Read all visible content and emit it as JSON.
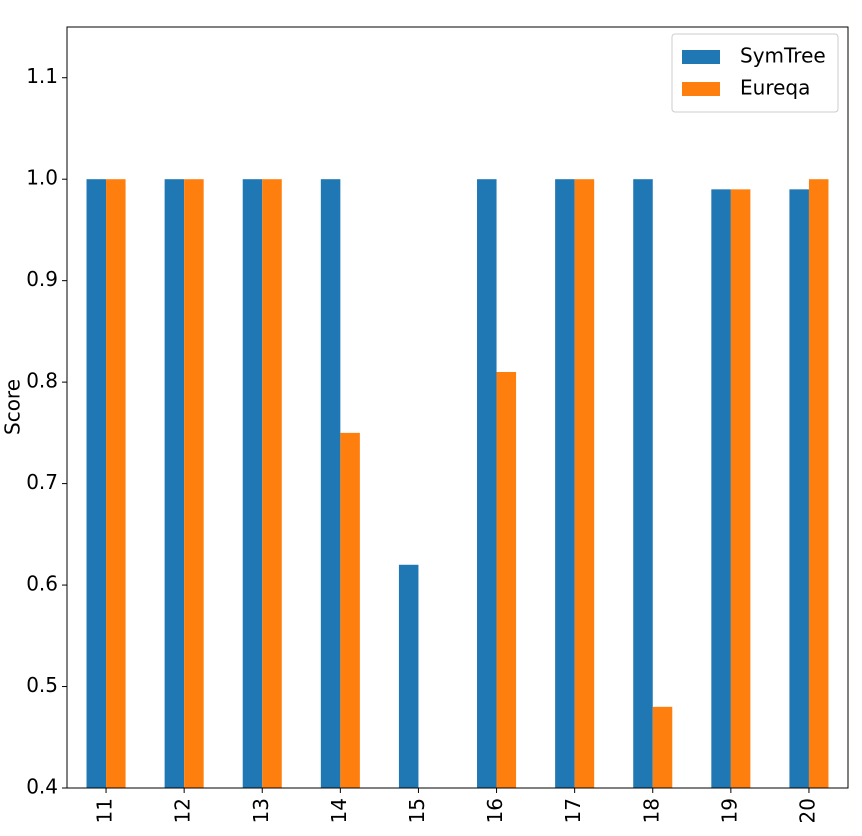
{
  "chart_data": {
    "type": "bar",
    "y_label": "Score",
    "categories": [
      "11",
      "12",
      "13",
      "14",
      "15",
      "16",
      "17",
      "18",
      "19",
      "20"
    ],
    "series": [
      {
        "name": "SymTree",
        "color": "#1f77b4",
        "values": [
          1,
          1,
          1,
          1,
          0.62,
          1,
          1,
          1,
          0.99,
          0.99
        ]
      },
      {
        "name": "Eureqa",
        "color": "#ff7f0e",
        "values": [
          1,
          1,
          1,
          0.75,
          null,
          0.81,
          1,
          0.48,
          0.99,
          1
        ]
      }
    ],
    "ylim": [
      0.4,
      1.15
    ],
    "yticks": [
      0.4,
      0.5,
      0.6,
      0.7,
      0.8,
      0.9,
      {
        "value": 1,
        "label": "1.0"
      },
      1.1
    ],
    "legend": "upper-right"
  }
}
